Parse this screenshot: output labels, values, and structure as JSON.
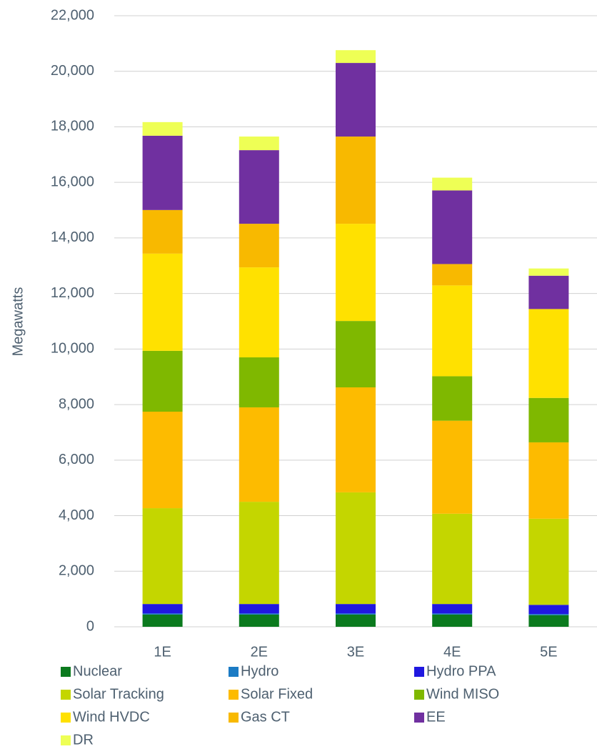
{
  "chart_data": {
    "type": "stacked_bar",
    "y_label": "Megawatts",
    "categories": [
      "1E",
      "2E",
      "3E",
      "4E",
      "5E"
    ],
    "series": [
      {
        "name": "Nuclear",
        "color": "#0b7a1e",
        "values": [
          440,
          440,
          440,
          440,
          420
        ]
      },
      {
        "name": "Hydro",
        "color": "#1b7bc4",
        "values": [
          40,
          40,
          40,
          40,
          40
        ]
      },
      {
        "name": "Hydro PPA",
        "color": "#2018e0",
        "values": [
          340,
          340,
          340,
          340,
          330
        ]
      },
      {
        "name": "Solar Tracking",
        "color": "#c4d600",
        "values": [
          3450,
          3680,
          4020,
          3250,
          3100
        ]
      },
      {
        "name": "Solar Fixed",
        "color": "#fdbb00",
        "values": [
          3475,
          3400,
          3780,
          3350,
          2750
        ]
      },
      {
        "name": "Wind MISO",
        "color": "#7fb800",
        "values": [
          2190,
          1800,
          2390,
          1600,
          1600
        ]
      },
      {
        "name": "Wind HVDC",
        "color": "#ffe100",
        "values": [
          3500,
          3240,
          3500,
          3270,
          3200
        ]
      },
      {
        "name": "Gas CT",
        "color": "#f8b900",
        "values": [
          1570,
          1570,
          3140,
          770,
          0
        ]
      },
      {
        "name": "EE",
        "color": "#7030a0",
        "values": [
          2675,
          2650,
          2650,
          2650,
          1200
        ]
      },
      {
        "name": "DR",
        "color": "#eeff55",
        "values": [
          490,
          490,
          460,
          460,
          260
        ]
      }
    ],
    "ylim": [
      0,
      22000
    ],
    "yticks": [
      0,
      {
        "value": 2000,
        "label": "2,000"
      },
      {
        "value": 4000,
        "label": "4,000"
      },
      {
        "value": 6000,
        "label": "6,000"
      },
      {
        "value": 8000,
        "label": "8,000"
      },
      {
        "value": 10000,
        "label": "10,000"
      },
      {
        "value": 12000,
        "label": "12,000"
      },
      {
        "value": 14000,
        "label": "14,000"
      },
      {
        "value": 16000,
        "label": "16,000"
      },
      {
        "value": 18000,
        "label": "18,000"
      },
      {
        "value": 20000,
        "label": "20,000"
      },
      {
        "value": 22000,
        "label": "22,000"
      }
    ],
    "grid": true,
    "legend": "bottom"
  }
}
